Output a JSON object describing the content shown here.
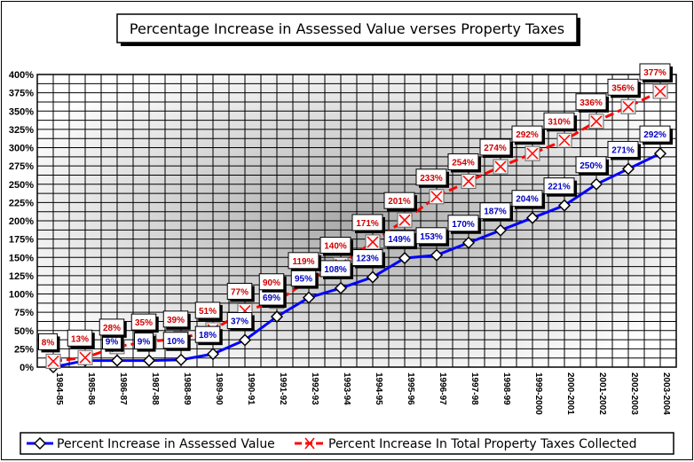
{
  "chart_data": {
    "type": "line",
    "title": "Percentage Increase in Assessed Value verses Property Taxes",
    "xlabel": "",
    "ylabel": "",
    "ylim": [
      0,
      400
    ],
    "yticks": [
      "0%",
      "25%",
      "50%",
      "75%",
      "100%",
      "125%",
      "150%",
      "175%",
      "200%",
      "225%",
      "250%",
      "275%",
      "300%",
      "325%",
      "350%",
      "375%",
      "400%"
    ],
    "grid": true,
    "legend_position": "bottom",
    "categories": [
      "1984-85",
      "1985-86",
      "1986-87",
      "1987-88",
      "1988-89",
      "1989-90",
      "1990-91",
      "1991-92",
      "1992-93",
      "1993-94",
      "1994-95",
      "1995-96",
      "1996-97",
      "1997-98",
      "1998-99",
      "1999-2000",
      "2000-2001",
      "2001-2002",
      "2002-2003",
      "2003-2004"
    ],
    "series": [
      {
        "name": "Percent Increase in Assessed Value",
        "color": "#0000ff",
        "label_color": "#0000c0",
        "marker": "diamond",
        "values": [
          0,
          9,
          9,
          9,
          10,
          18,
          37,
          69,
          95,
          108,
          123,
          149,
          153,
          170,
          187,
          204,
          221,
          250,
          271,
          292
        ],
        "labels": [
          null,
          null,
          "9%",
          "9%",
          "10%",
          "18%",
          "37%",
          "69%",
          "95%",
          "108%",
          "123%",
          "149%",
          "153%",
          "170%",
          "187%",
          "204%",
          "221%",
          "250%",
          "271%",
          "292%"
        ]
      },
      {
        "name": "Percent Increase In Total Property Taxes Collected",
        "color": "#ff0000",
        "label_color": "#d00000",
        "marker": "x-box",
        "values": [
          8,
          13,
          28,
          35,
          39,
          51,
          77,
          90,
          119,
          140,
          171,
          201,
          233,
          254,
          274,
          292,
          310,
          336,
          356,
          377
        ],
        "labels": [
          "8%",
          "13%",
          "28%",
          "35%",
          "39%",
          "51%",
          "77%",
          "90%",
          "119%",
          "140%",
          "171%",
          "201%",
          "233%",
          "254%",
          "274%",
          "292%",
          "310%",
          "336%",
          "356%",
          "377%"
        ]
      }
    ]
  }
}
